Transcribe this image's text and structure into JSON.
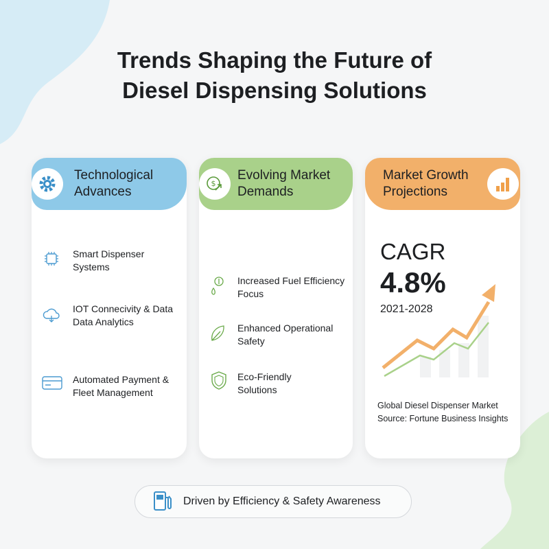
{
  "header": {
    "title_lines": [
      "Trends Shaping the Future of",
      "Diesel Dispensing Solutions"
    ]
  },
  "cards": [
    {
      "title_lines": [
        "Technological",
        "Advances"
      ],
      "items": [
        [
          "Smart Dispenser",
          "Systems"
        ],
        [
          "IOT Connecivity & Data",
          "Data Analytics"
        ],
        [
          "Automated Payment &",
          "Fleet Management"
        ]
      ]
    },
    {
      "title_lines": [
        "Evolving Market",
        "Demands"
      ],
      "items": [
        [
          "Increased Fuel Efficiency",
          "Focus"
        ],
        [
          "Enhanced Operational",
          "Safety"
        ],
        [
          "Eco-Friendly",
          "Solutions"
        ]
      ]
    },
    {
      "title_lines": [
        "Market Growth",
        "Projections"
      ],
      "metric_label": "CAGR",
      "metric_value": "4.8%",
      "period": "2021-2028",
      "source_lines": [
        "Global Diesel Dispenser Market",
        "Source: Fortune Business Insights"
      ]
    }
  ],
  "footer": {
    "text": "Driven by Efficiency & Safety Awareness"
  }
}
